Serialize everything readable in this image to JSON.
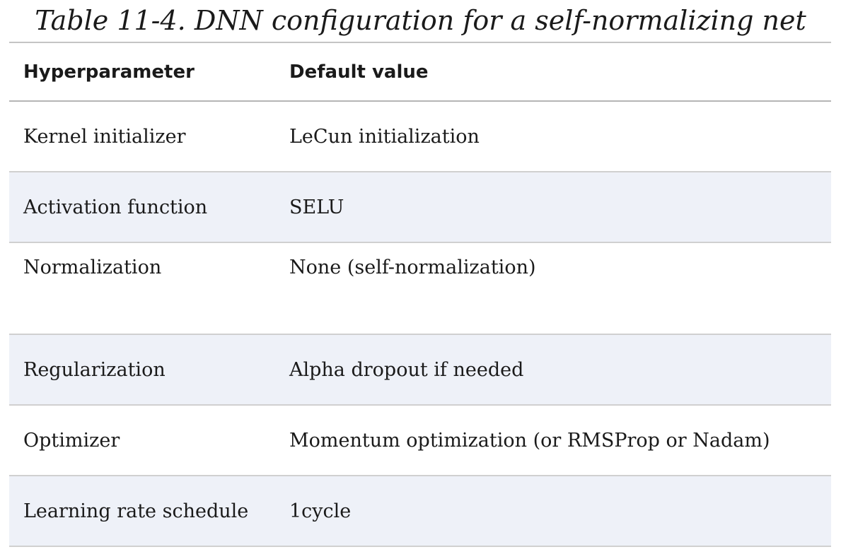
{
  "caption": "Table 11-4. DNN configuration for a self-normalizing net",
  "table": {
    "headers": [
      "Hyperparameter",
      "Default value"
    ],
    "rows": [
      [
        "Kernel initializer",
        "LeCun initialization"
      ],
      [
        "Activation function",
        "SELU"
      ],
      [
        "Normalization",
        "None (self-normalization)"
      ],
      [
        "Regularization",
        "Alpha dropout if needed"
      ],
      [
        "Optimizer",
        "Momentum optimization (or RMSProp or Nadam)"
      ],
      [
        "Learning rate schedule",
        "1cycle"
      ]
    ]
  }
}
